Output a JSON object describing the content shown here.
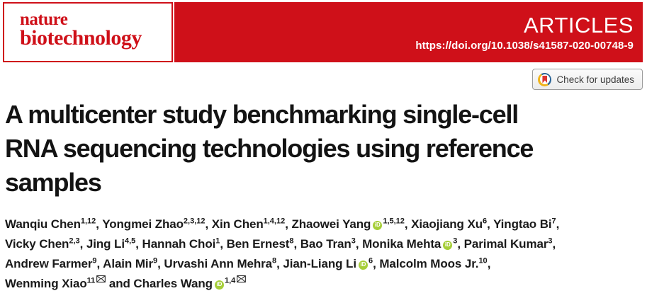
{
  "masthead": {
    "journal_name_line1": "nature",
    "journal_name_line2": "biotechnology",
    "section_label": "ARTICLES",
    "doi_url": "https://doi.org/10.1038/s41587-020-00748-9",
    "brand_red": "#cf1019"
  },
  "crossmark": {
    "label": "Check for updates",
    "colors": {
      "blue": "#2a6496",
      "yellow": "#f0b41c",
      "bookmark_red": "#dd3430"
    }
  },
  "icons": {
    "orcid_text": "iD",
    "orcid_green": "#a6ce39"
  },
  "article": {
    "title": "A multicenter study benchmarking single-cell RNA sequencing technologies using reference samples",
    "title_lines": [
      "A multicenter study benchmarking single-cell",
      "RNA sequencing technologies using reference",
      "samples"
    ]
  },
  "authors": {
    "lines": [
      [
        {
          "name": "Wanqiu Chen",
          "sup": "1,12",
          "after": ", "
        },
        {
          "name": "Yongmei Zhao",
          "sup": "2,3,12",
          "after": ", "
        },
        {
          "name": "Xin Chen",
          "sup": "1,4,12",
          "after": ", "
        },
        {
          "name": "Zhaowei Yang",
          "orcid": true,
          "sup": "1,5,12",
          "after": ", "
        },
        {
          "name": "Xiaojiang Xu",
          "sup": "6",
          "after": ", "
        },
        {
          "name": "Yingtao Bi",
          "sup": "7",
          "after": ","
        }
      ],
      [
        {
          "name": "Vicky Chen",
          "sup": "2,3",
          "after": ", "
        },
        {
          "name": "Jing Li",
          "sup": "4,5",
          "after": ", "
        },
        {
          "name": "Hannah Choi",
          "sup": "1",
          "after": ", "
        },
        {
          "name": "Ben Ernest",
          "sup": "8",
          "after": ", "
        },
        {
          "name": "Bao Tran",
          "sup": "3",
          "after": ", "
        },
        {
          "name": "Monika Mehta",
          "orcid": true,
          "sup": "3",
          "after": ", "
        },
        {
          "name": "Parimal Kumar",
          "sup": "3",
          "after": ","
        }
      ],
      [
        {
          "name": "Andrew Farmer",
          "sup": "9",
          "after": ", "
        },
        {
          "name": "Alain Mir",
          "sup": "9",
          "after": ", "
        },
        {
          "name": "Urvashi Ann Mehra",
          "sup": "8",
          "after": ", "
        },
        {
          "name": "Jian-Liang Li",
          "orcid": true,
          "sup": "6",
          "after": ", "
        },
        {
          "name": "Malcolm Moos Jr.",
          "sup": "10",
          "after": ","
        }
      ],
      [
        {
          "name": "Wenming Xiao",
          "sup": "11",
          "mail": true,
          "after": " and "
        },
        {
          "name": "Charles Wang",
          "orcid": true,
          "sup": "1,4",
          "mail": true,
          "after": ""
        }
      ]
    ]
  }
}
